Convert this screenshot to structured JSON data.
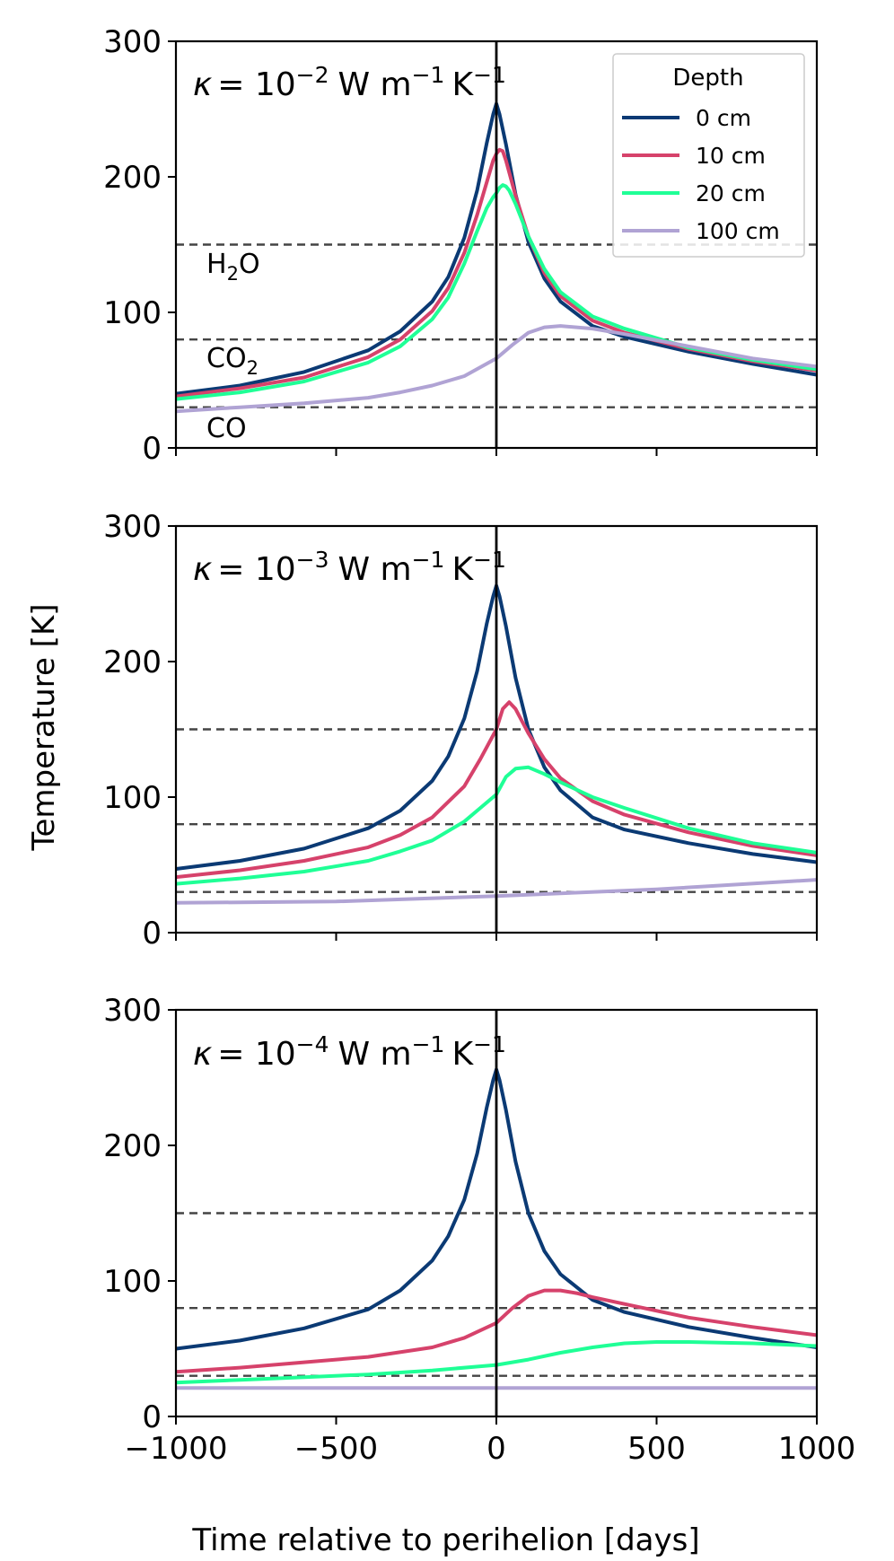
{
  "figure": {
    "xlabel": "Time relative to perihelion [days]",
    "ylabel": "Temperature [K]"
  },
  "chart_data": [
    {
      "type": "line",
      "title": "κ = 10^-2 W m^-1 K^-1",
      "kappa_exponent": "−2",
      "xlim": [
        -1000,
        1000
      ],
      "ylim": [
        0,
        300
      ],
      "xticks": [
        -1000,
        -500,
        0,
        500,
        1000
      ],
      "yticks": [
        0,
        100,
        200,
        300
      ],
      "show_xticklabels": false,
      "xlabel": "",
      "ylabel": "Temperature [K]",
      "legend": {
        "title": "Depth",
        "position": "top-right"
      },
      "hlines": [
        {
          "y": 150,
          "label": "H2O",
          "label_main": "H",
          "label_sub": "2",
          "label_tail": "O"
        },
        {
          "y": 80,
          "label": "CO2",
          "label_main": "CO",
          "label_sub": "2",
          "label_tail": ""
        },
        {
          "y": 30,
          "label": "CO",
          "label_main": "CO",
          "label_sub": "",
          "label_tail": ""
        }
      ],
      "vline_x": 0,
      "series": [
        {
          "name": "0 cm",
          "color": "#0b3a74",
          "x": [
            -1000,
            -800,
            -600,
            -400,
            -300,
            -200,
            -150,
            -100,
            -60,
            -30,
            -10,
            0,
            10,
            30,
            60,
            100,
            150,
            200,
            300,
            400,
            600,
            800,
            1000
          ],
          "y": [
            40,
            46,
            56,
            72,
            86,
            108,
            126,
            155,
            190,
            225,
            246,
            254,
            246,
            224,
            187,
            152,
            125,
            108,
            90,
            82,
            71,
            62,
            54
          ]
        },
        {
          "name": "10 cm",
          "color": "#d6426b",
          "x": [
            -1000,
            -800,
            -600,
            -400,
            -300,
            -200,
            -150,
            -100,
            -60,
            -30,
            -10,
            0,
            10,
            20,
            30,
            60,
            100,
            150,
            200,
            300,
            400,
            600,
            800,
            1000
          ],
          "y": [
            38,
            44,
            52,
            67,
            80,
            101,
            118,
            144,
            172,
            196,
            212,
            217,
            220,
            219,
            212,
            186,
            156,
            129,
            112,
            94,
            85,
            73,
            64,
            57
          ]
        },
        {
          "name": "20 cm",
          "color": "#1fff96",
          "x": [
            -1000,
            -800,
            -600,
            -400,
            -300,
            -200,
            -150,
            -100,
            -60,
            -30,
            -10,
            0,
            10,
            20,
            30,
            40,
            60,
            100,
            150,
            200,
            300,
            400,
            600,
            800,
            1000
          ],
          "y": [
            36,
            41,
            49,
            63,
            75,
            95,
            111,
            136,
            160,
            177,
            185,
            188,
            192,
            194,
            193,
            190,
            180,
            156,
            132,
            115,
            97,
            88,
            74,
            65,
            58
          ]
        },
        {
          "name": "100 cm",
          "color": "#b0a3d4",
          "x": [
            -1000,
            -800,
            -600,
            -400,
            -300,
            -200,
            -100,
            0,
            50,
            100,
            150,
            200,
            300,
            400,
            600,
            800,
            1000
          ],
          "y": [
            27,
            30,
            33,
            37,
            41,
            46,
            53,
            66,
            76,
            85,
            89,
            90,
            88,
            84,
            75,
            66,
            60
          ]
        }
      ]
    },
    {
      "type": "line",
      "title": "κ = 10^-3 W m^-1 K^-1",
      "kappa_exponent": "−3",
      "xlim": [
        -1000,
        1000
      ],
      "ylim": [
        0,
        300
      ],
      "xticks": [
        -1000,
        -500,
        0,
        500,
        1000
      ],
      "yticks": [
        0,
        100,
        200,
        300
      ],
      "show_xticklabels": false,
      "xlabel": "",
      "ylabel": "Temperature [K]",
      "hlines": [
        {
          "y": 150
        },
        {
          "y": 80
        },
        {
          "y": 30
        }
      ],
      "vline_x": 0,
      "series": [
        {
          "name": "0 cm",
          "color": "#0b3a74",
          "x": [
            -1000,
            -800,
            -600,
            -400,
            -300,
            -200,
            -150,
            -100,
            -60,
            -30,
            -10,
            0,
            10,
            30,
            60,
            100,
            150,
            200,
            300,
            400,
            600,
            800,
            1000
          ],
          "y": [
            47,
            53,
            62,
            77,
            90,
            112,
            130,
            158,
            193,
            228,
            248,
            256,
            248,
            226,
            188,
            150,
            122,
            105,
            85,
            76,
            66,
            58,
            52
          ]
        },
        {
          "name": "10 cm",
          "color": "#d6426b",
          "x": [
            -1000,
            -800,
            -600,
            -400,
            -300,
            -200,
            -100,
            -50,
            0,
            20,
            40,
            60,
            100,
            150,
            200,
            300,
            400,
            600,
            800,
            1000
          ],
          "y": [
            41,
            46,
            53,
            63,
            72,
            85,
            108,
            128,
            150,
            165,
            170,
            165,
            147,
            128,
            114,
            97,
            87,
            74,
            64,
            57
          ]
        },
        {
          "name": "20 cm",
          "color": "#1fff96",
          "x": [
            -1000,
            -800,
            -600,
            -400,
            -300,
            -200,
            -100,
            -50,
            0,
            30,
            60,
            100,
            150,
            200,
            300,
            400,
            600,
            800,
            1000
          ],
          "y": [
            36,
            40,
            45,
            53,
            60,
            68,
            82,
            92,
            102,
            115,
            121,
            122,
            117,
            111,
            100,
            92,
            77,
            66,
            59
          ]
        },
        {
          "name": "100 cm",
          "color": "#b0a3d4",
          "x": [
            -1000,
            -500,
            0,
            500,
            1000
          ],
          "y": [
            22,
            23,
            27,
            32,
            39
          ]
        }
      ]
    },
    {
      "type": "line",
      "title": "κ = 10^-4 W m^-1 K^-1",
      "kappa_exponent": "−4",
      "xlim": [
        -1000,
        1000
      ],
      "ylim": [
        0,
        300
      ],
      "xticks": [
        -1000,
        -500,
        0,
        500,
        1000
      ],
      "xticklabels": [
        "−1000",
        "−500",
        "0",
        "500",
        "1000"
      ],
      "yticks": [
        0,
        100,
        200,
        300
      ],
      "show_xticklabels": true,
      "xlabel": "Time relative to perihelion [days]",
      "ylabel": "Temperature [K]",
      "hlines": [
        {
          "y": 150
        },
        {
          "y": 80
        },
        {
          "y": 30
        }
      ],
      "vline_x": 0,
      "series": [
        {
          "name": "0 cm",
          "color": "#0b3a74",
          "x": [
            -1000,
            -800,
            -600,
            -400,
            -300,
            -200,
            -150,
            -100,
            -60,
            -30,
            -10,
            0,
            10,
            30,
            60,
            100,
            150,
            200,
            300,
            400,
            600,
            800,
            1000
          ],
          "y": [
            50,
            56,
            65,
            79,
            93,
            115,
            133,
            160,
            194,
            228,
            248,
            256,
            248,
            226,
            188,
            150,
            122,
            105,
            86,
            77,
            66,
            58,
            51
          ]
        },
        {
          "name": "10 cm",
          "color": "#d6426b",
          "x": [
            -1000,
            -800,
            -600,
            -400,
            -200,
            -100,
            0,
            50,
            100,
            150,
            200,
            250,
            300,
            400,
            600,
            800,
            1000
          ],
          "y": [
            33,
            36,
            40,
            44,
            51,
            58,
            69,
            80,
            89,
            93,
            93,
            91,
            88,
            83,
            73,
            66,
            60
          ]
        },
        {
          "name": "20 cm",
          "color": "#1fff96",
          "x": [
            -1000,
            -800,
            -600,
            -400,
            -200,
            0,
            100,
            200,
            300,
            400,
            500,
            600,
            800,
            1000
          ],
          "y": [
            25,
            27,
            29,
            31,
            34,
            38,
            42,
            47,
            51,
            54,
            55,
            55,
            54,
            52
          ]
        },
        {
          "name": "100 cm",
          "color": "#b0a3d4",
          "x": [
            -1000,
            0,
            1000
          ],
          "y": [
            21,
            21,
            21
          ]
        }
      ]
    }
  ]
}
